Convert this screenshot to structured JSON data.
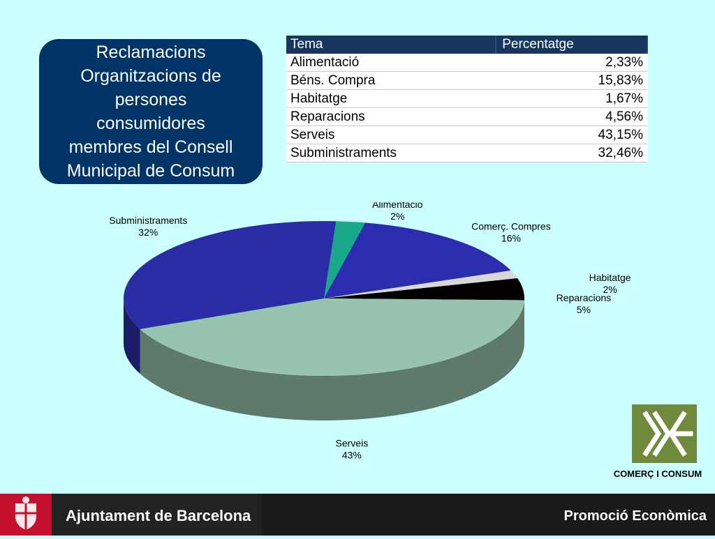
{
  "title": "Reclamacions\nOrganitzacions de\npersones\nconsumidores\nmembres del Consell\nMunicipal de Consum",
  "table": {
    "headers": [
      "Tema",
      "Percentatge"
    ],
    "rows": [
      {
        "tema": "Alimentació",
        "pct": "2,33%"
      },
      {
        "tema": "Béns. Compra",
        "pct": "15,83%"
      },
      {
        "tema": "Habitatge",
        "pct": "1,67%"
      },
      {
        "tema": "Reparacions",
        "pct": "4,56%"
      },
      {
        "tema": "Serveis",
        "pct": "43,15%"
      },
      {
        "tema": "Subministraments",
        "pct": "32,46%"
      }
    ]
  },
  "chart_data": {
    "type": "pie",
    "title": "",
    "legend": "none",
    "slices": [
      {
        "label": "Alimentació",
        "pct_label": "2%",
        "value": 2.33,
        "color": "#1aa88a"
      },
      {
        "label": "Comerç. Compres",
        "pct_label": "16%",
        "value": 15.83,
        "color": "#2a2db0"
      },
      {
        "label": "Habitatge",
        "pct_label": "2%",
        "value": 1.67,
        "color": "#d8d8d8"
      },
      {
        "label": "Reparacions",
        "pct_label": "5%",
        "value": 4.56,
        "color": "#000000"
      },
      {
        "label": "Serveis",
        "pct_label": "43%",
        "value": 43.15,
        "color": "#97c4b0"
      },
      {
        "label": "Subministraments",
        "pct_label": "32%",
        "value": 32.46,
        "color": "#2a2da6"
      }
    ]
  },
  "logo": {
    "text": "COMERÇ I CONSUM",
    "color": "#6e8a3a"
  },
  "footer": {
    "left_text": "Ajuntament de Barcelona",
    "right_text": "Promoció Econòmica",
    "crest_color": "#c4102e"
  }
}
